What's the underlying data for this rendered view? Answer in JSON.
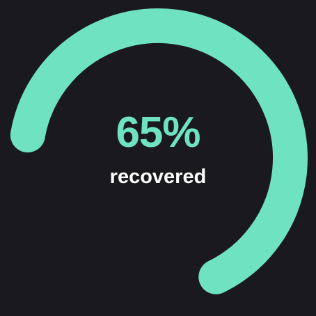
{
  "progress": {
    "value_percent": 65,
    "percent_text": "65%",
    "label": "recovered"
  },
  "colors": {
    "background": "#1a1a1e",
    "accent": "#6fe3c1",
    "label": "#ffffff"
  }
}
